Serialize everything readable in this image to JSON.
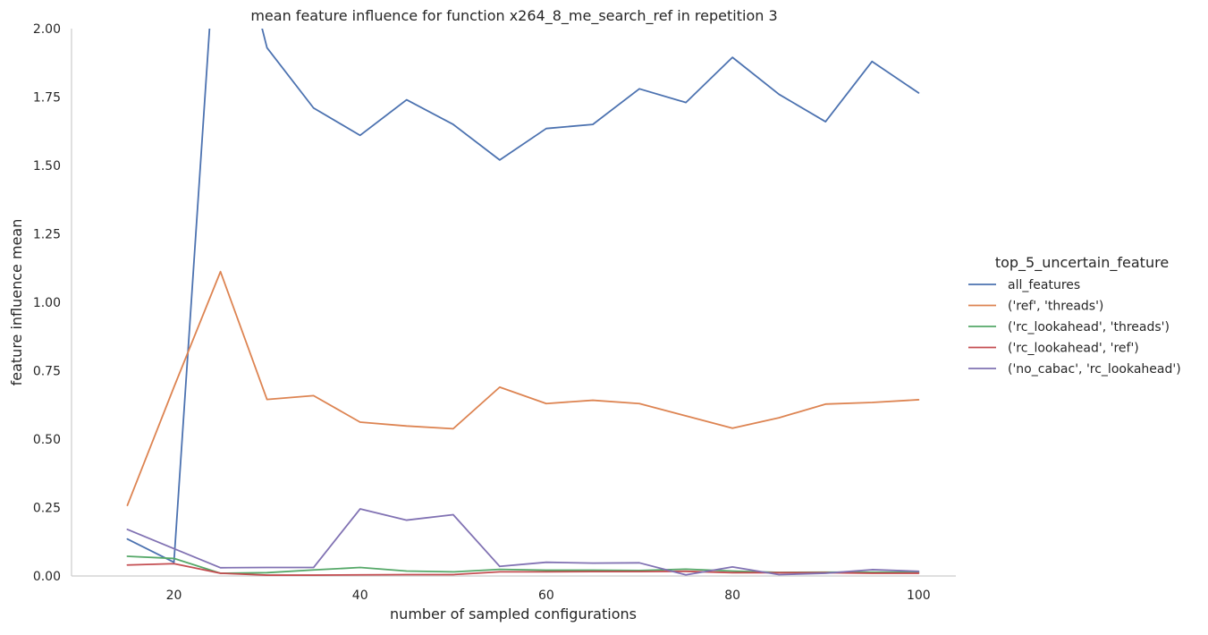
{
  "chart_data": {
    "type": "line",
    "title": "mean feature influence for function x264_8_me_search_ref in repetition 3",
    "xlabel": "number of sampled configurations",
    "ylabel": "feature influence mean",
    "xlim": [
      9,
      104
    ],
    "ylim": [
      0,
      2.0
    ],
    "x_ticks": [
      20,
      40,
      60,
      80,
      100
    ],
    "y_ticks": [
      0.0,
      0.25,
      0.5,
      0.75,
      1.0,
      1.25,
      1.5,
      1.75,
      2.0
    ],
    "y_tick_labels": [
      "0.00",
      "0.25",
      "0.50",
      "0.75",
      "1.00",
      "1.25",
      "1.50",
      "1.75",
      "2.00"
    ],
    "grid": false,
    "legend": {
      "title": "top_5_uncertain_feature",
      "placement": "right"
    },
    "x": [
      15,
      20,
      25,
      30,
      35,
      40,
      45,
      50,
      55,
      60,
      65,
      70,
      75,
      80,
      85,
      90,
      95,
      100
    ],
    "series": [
      {
        "name": "all_features",
        "color": "#4c72b0",
        "values": [
          0.135,
          0.05,
          2.6,
          1.93,
          1.71,
          1.61,
          1.74,
          1.65,
          1.52,
          1.635,
          1.65,
          1.78,
          1.73,
          1.895,
          1.76,
          1.66,
          1.88,
          1.765
        ]
      },
      {
        "name": "('ref', 'threads')",
        "color": "#dd8452",
        "values": [
          0.258,
          0.69,
          1.112,
          0.645,
          0.659,
          0.562,
          0.548,
          0.538,
          0.69,
          0.63,
          0.642,
          0.63,
          0.585,
          0.54,
          0.578,
          0.628,
          0.634,
          0.644
        ]
      },
      {
        "name": "('rc_lookahead', 'threads')",
        "color": "#55a868",
        "values": [
          0.072,
          0.064,
          0.01,
          0.012,
          0.022,
          0.031,
          0.018,
          0.015,
          0.024,
          0.021,
          0.021,
          0.02,
          0.025,
          0.018,
          0.013,
          0.014,
          0.014,
          0.013
        ]
      },
      {
        "name": "('rc_lookahead', 'ref')",
        "color": "#c44e52",
        "values": [
          0.04,
          0.045,
          0.01,
          0.003,
          0.003,
          0.004,
          0.005,
          0.005,
          0.015,
          0.015,
          0.016,
          0.016,
          0.017,
          0.012,
          0.012,
          0.012,
          0.01,
          0.01
        ]
      },
      {
        "name": "('no_cabac', 'rc_lookahead')",
        "color": "#8172b3",
        "values": [
          0.17,
          0.1,
          0.03,
          0.031,
          0.031,
          0.245,
          0.204,
          0.224,
          0.035,
          0.05,
          0.047,
          0.048,
          0.004,
          0.033,
          0.005,
          0.01,
          0.023,
          0.017
        ]
      }
    ]
  }
}
